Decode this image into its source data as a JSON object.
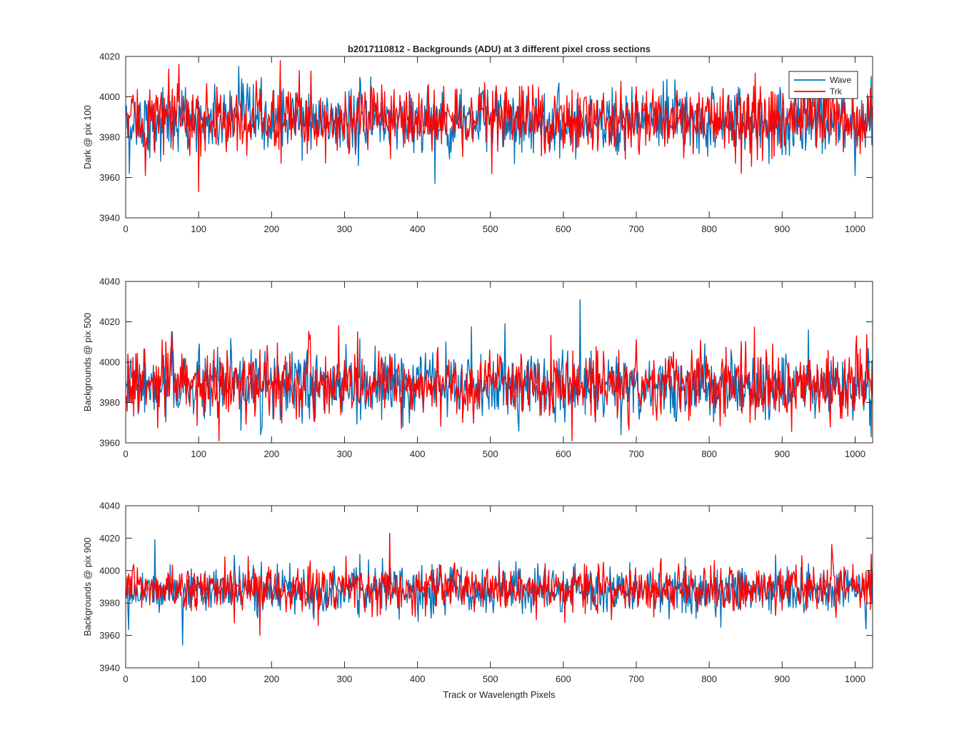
{
  "figure": {
    "title": "b2017110812 - Backgrounds (ADU) at 3 different pixel cross sections",
    "xlabel": "Track or Wavelength Pixels"
  },
  "legend": {
    "placement": "top-right",
    "entries": [
      "Wave",
      "Trk"
    ]
  },
  "colors": {
    "Wave": "#0072BD",
    "Trk": "#FF0000"
  },
  "chart_data": [
    {
      "type": "line",
      "title": "b2017110812 - Backgrounds (ADU) at 3 different pixel cross sections",
      "ylabel": "Dark @ pix 100",
      "xlabel": "",
      "xlim": [
        0,
        1024
      ],
      "ylim": [
        3940,
        4020
      ],
      "xticks": [
        0,
        100,
        200,
        300,
        400,
        500,
        600,
        700,
        800,
        900,
        1000
      ],
      "yticks": [
        3940,
        3960,
        3980,
        4000,
        4020
      ],
      "grid": false,
      "legend": "top-right",
      "x": "pixel index 1..1024",
      "series": [
        {
          "name": "Wave",
          "n_points": 1024,
          "mean": 3988,
          "std": 8,
          "notable_points": [
            [
              5,
              3962
            ],
            [
              155,
              4015
            ],
            [
              424,
              3957
            ],
            [
              1000,
              3961
            ],
            [
              1022,
              4010
            ]
          ]
        },
        {
          "name": "Trk",
          "n_points": 1024,
          "mean": 3989,
          "std": 8,
          "notable_points": [
            [
              27,
              3961
            ],
            [
              73,
              4016
            ],
            [
              100,
              3953
            ],
            [
              212,
              4018
            ],
            [
              238,
              4013
            ],
            [
              502,
              3962
            ],
            [
              844,
              3962
            ]
          ]
        }
      ]
    },
    {
      "type": "line",
      "title": "",
      "ylabel": "Backgrounds @ pix 500",
      "xlabel": "",
      "xlim": [
        0,
        1024
      ],
      "ylim": [
        3960,
        4040
      ],
      "xticks": [
        0,
        100,
        200,
        300,
        400,
        500,
        600,
        700,
        800,
        900,
        1000
      ],
      "yticks": [
        3960,
        3980,
        4000,
        4020,
        4040
      ],
      "grid": false,
      "x": "pixel index 1..1024",
      "series": [
        {
          "name": "Wave",
          "n_points": 1024,
          "mean": 3988,
          "std": 8,
          "notable_points": [
            [
              64,
              4015
            ],
            [
              520,
              4019
            ],
            [
              623,
              4031
            ],
            [
              1022,
              3963
            ]
          ]
        },
        {
          "name": "Trk",
          "n_points": 1024,
          "mean": 3989,
          "std": 8,
          "notable_points": [
            [
              63,
              4015
            ],
            [
              128,
              3961
            ],
            [
              292,
              4018
            ],
            [
              612,
              3961
            ]
          ]
        }
      ]
    },
    {
      "type": "line",
      "title": "",
      "ylabel": "Backgrounds @ pix 900",
      "xlabel": "Track or Wavelength Pixels",
      "xlim": [
        0,
        1024
      ],
      "ylim": [
        3940,
        4040
      ],
      "xticks": [
        0,
        100,
        200,
        300,
        400,
        500,
        600,
        700,
        800,
        900,
        1000
      ],
      "yticks": [
        3940,
        3960,
        3980,
        4000,
        4020,
        4040
      ],
      "grid": false,
      "x": "pixel index 1..1024",
      "series": [
        {
          "name": "Wave",
          "n_points": 1024,
          "mean": 3988,
          "std": 7,
          "notable_points": [
            [
              40,
              4019
            ],
            [
              78,
              3954
            ],
            [
              1015,
              3964
            ]
          ]
        },
        {
          "name": "Trk",
          "n_points": 1024,
          "mean": 3989,
          "std": 7,
          "notable_points": [
            [
              362,
              4023
            ],
            [
              184,
              3960
            ],
            [
              968,
              4016
            ],
            [
              1022,
              4010
            ]
          ]
        }
      ]
    }
  ]
}
